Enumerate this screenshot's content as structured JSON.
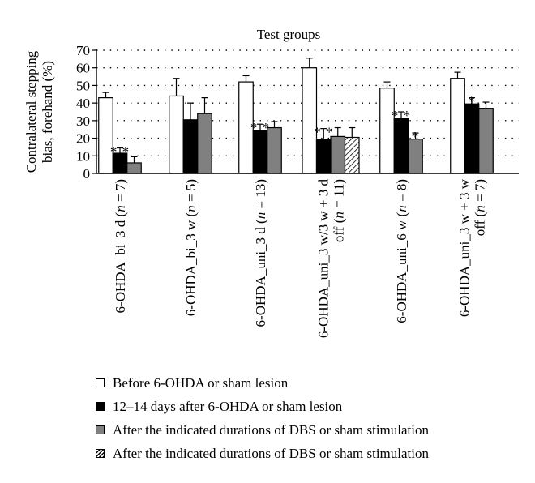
{
  "chart_data": {
    "type": "bar",
    "title": "Test groups",
    "ylabel": "Contralateral stepping bias, forehand (%)",
    "ylabel_lines": [
      "Contralateral stepping",
      "bias, forehand (%)"
    ],
    "xlabel": "",
    "ylim": [
      0,
      70
    ],
    "yticks": [
      0,
      10,
      20,
      30,
      40,
      50,
      60,
      70
    ],
    "grid": "dotted horizontal",
    "legend_position": "bottom",
    "categories": [
      "6-OHDA_bi_3 d (n = 7)",
      "6-OHDA_bi_3 w (n = 5)",
      "6-OHDA_uni_3 d (n = 13)",
      "6-OHDA_uni_3 w/3 w + 3 d off (n = 11)",
      "6-OHDA_uni_6 w (n = 8)",
      "6-OHDA_uni_3 w + 3 w off (n = 7)"
    ],
    "category_label_lines": [
      [
        "6-OHDA_bi_3 d (n = 7)"
      ],
      [
        "6-OHDA_bi_3 w (n = 5)"
      ],
      [
        "6-OHDA_uni_3 d (n = 13)"
      ],
      [
        "6-OHDA_uni_3 w/3 w + 3 d",
        "off (n = 11)"
      ],
      [
        "6-OHDA_uni_6 w (n = 8)"
      ],
      [
        "6-OHDA_uni_3 w + 3 w",
        "off (n = 7)"
      ]
    ],
    "series": [
      {
        "name": "Before 6-OHDA or sham lesion",
        "fill": "white",
        "values": [
          43,
          44,
          52,
          60,
          48.5,
          54
        ],
        "errors": [
          3,
          10,
          3.5,
          5.5,
          3.5,
          3.5
        ],
        "markers": [
          "",
          "",
          "",
          "",
          "",
          ""
        ]
      },
      {
        "name": "12–14 days after 6-OHDA or sham lesion",
        "fill": "black",
        "values": [
          11.5,
          30.5,
          24.5,
          19.5,
          31.5,
          39.5
        ],
        "errors": [
          3,
          9.5,
          3.5,
          6,
          3.5,
          3.5
        ],
        "markers": [
          "**",
          "",
          "**",
          "**",
          "**",
          "*"
        ]
      },
      {
        "name": "After the indicated durations of DBS or sham stimulation",
        "fill": "gray",
        "values": [
          6,
          34,
          26,
          21,
          19.5,
          37
        ],
        "errors": [
          3.5,
          9,
          3.5,
          5,
          3.5,
          3.5
        ],
        "markers": [
          "",
          "",
          "",
          "",
          "*",
          ""
        ]
      },
      {
        "name": "After the indicated durations of DBS or sham stimulation",
        "fill": "hatch",
        "values": [
          null,
          null,
          null,
          20.5,
          null,
          null
        ],
        "errors": [
          null,
          null,
          null,
          5.5,
          null,
          null
        ],
        "markers": [
          "",
          "",
          "",
          "",
          "",
          ""
        ]
      }
    ]
  },
  "colors": {
    "white": "#ffffff",
    "black": "#000000",
    "gray": "#808080",
    "axis": "#000000"
  }
}
